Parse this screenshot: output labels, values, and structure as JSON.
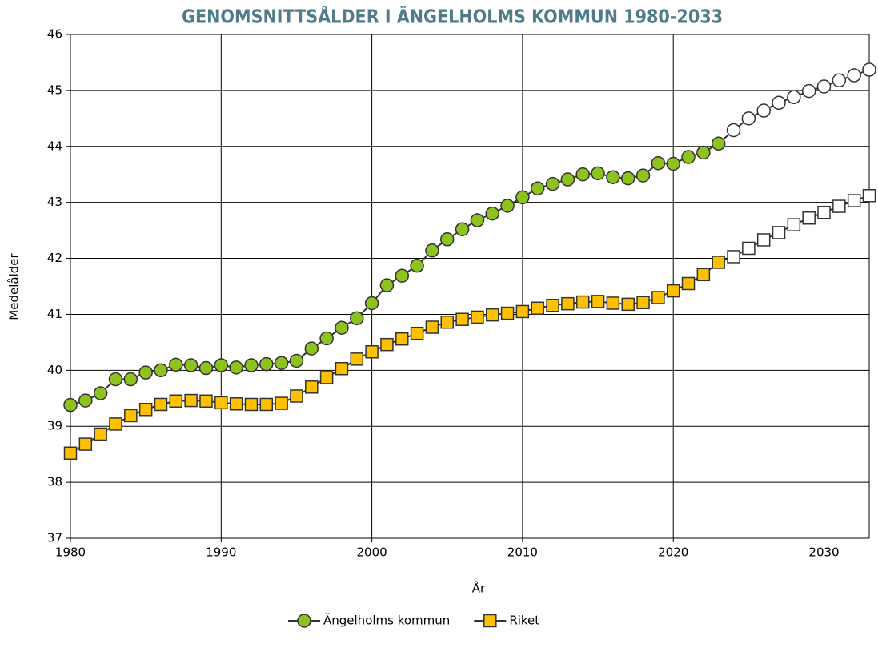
{
  "chart_data": {
    "type": "line",
    "title": "GENOMSNITTSÅLDER I ÄNGELHOLMS KOMMUN 1980-2033",
    "x_label": "År",
    "y_label": "Medelålder",
    "x": [
      1980,
      1981,
      1982,
      1983,
      1984,
      1985,
      1986,
      1987,
      1988,
      1989,
      1990,
      1991,
      1992,
      1993,
      1994,
      1995,
      1996,
      1997,
      1998,
      1999,
      2000,
      2001,
      2002,
      2003,
      2004,
      2005,
      2006,
      2007,
      2008,
      2009,
      2010,
      2011,
      2012,
      2013,
      2014,
      2015,
      2016,
      2017,
      2018,
      2019,
      2020,
      2021,
      2022,
      2023,
      2024,
      2025,
      2026,
      2027,
      2028,
      2029,
      2030,
      2031,
      2032,
      2033
    ],
    "series": [
      {
        "name": "Ängelholms kommun",
        "color": "#8dc21f",
        "marker": "circle",
        "values": [
          39.38,
          39.46,
          39.59,
          39.84,
          39.84,
          39.96,
          40.0,
          40.1,
          40.09,
          40.04,
          40.09,
          40.05,
          40.09,
          40.11,
          40.13,
          40.17,
          40.39,
          40.57,
          40.76,
          40.93,
          41.2,
          41.52,
          41.69,
          41.87,
          42.14,
          42.34,
          42.52,
          42.68,
          42.8,
          42.94,
          43.09,
          43.25,
          43.33,
          43.41,
          43.5,
          43.52,
          43.45,
          43.43,
          43.48,
          43.7,
          43.69,
          43.81,
          43.89,
          44.05,
          44.29,
          44.5,
          44.64,
          44.78,
          44.88,
          44.99,
          45.07,
          45.18,
          45.27,
          45.37
        ]
      },
      {
        "name": "Riket",
        "color": "#ffc000",
        "marker": "square",
        "values": [
          38.52,
          38.68,
          38.86,
          39.04,
          39.19,
          39.3,
          39.39,
          39.45,
          39.46,
          39.45,
          39.42,
          39.4,
          39.39,
          39.39,
          39.41,
          39.54,
          39.7,
          39.87,
          40.03,
          40.2,
          40.33,
          40.46,
          40.56,
          40.66,
          40.77,
          40.86,
          40.91,
          40.95,
          40.99,
          41.02,
          41.05,
          41.11,
          41.16,
          41.19,
          41.22,
          41.23,
          41.2,
          41.18,
          41.21,
          41.3,
          41.42,
          41.55,
          41.71,
          41.93,
          42.03,
          42.18,
          42.33,
          42.46,
          42.6,
          42.72,
          42.82,
          42.93,
          43.03,
          43.12
        ]
      }
    ],
    "hollow_from_x": 2024,
    "hollow_fill": "#ffffff",
    "xlim": [
      1980,
      2033
    ],
    "xticks": [
      1980,
      1990,
      2000,
      2010,
      2020,
      2030
    ],
    "ylim": [
      37,
      46
    ],
    "yticks": [
      37,
      38,
      39,
      40,
      41,
      42,
      43,
      44,
      45,
      46
    ],
    "grid": true,
    "legend": "bottom"
  }
}
